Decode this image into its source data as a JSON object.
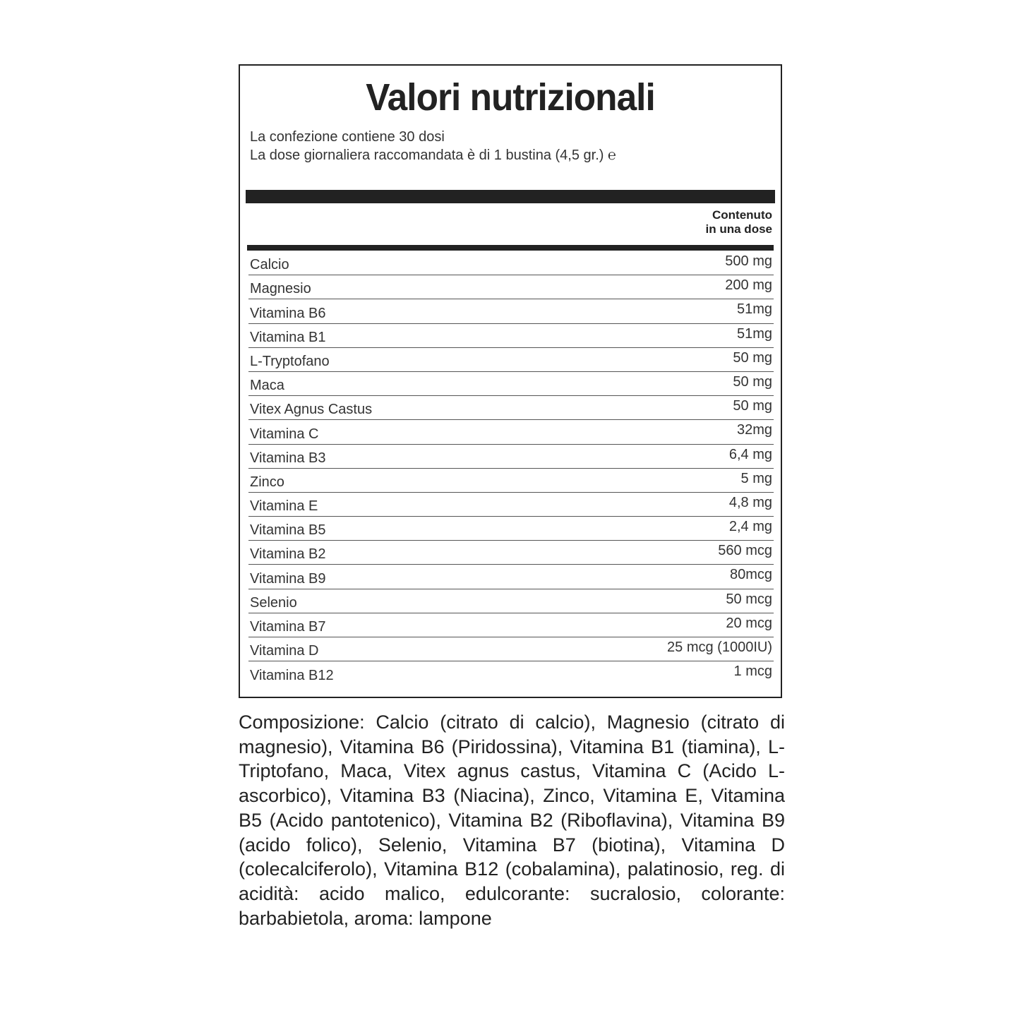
{
  "title": "Valori nutrizionali",
  "subtitle_lines": [
    "La confezione contiene 30 dosi",
    "La dose giornaliera raccomandata è di 1 bustina (4,5 gr.) ℮"
  ],
  "column_header": [
    "Contenuto",
    "in una dose"
  ],
  "rows": [
    {
      "name": "Calcio",
      "value": "500 mg"
    },
    {
      "name": "Magnesio",
      "value": "200 mg"
    },
    {
      "name": "Vitamina B6",
      "value": "51mg"
    },
    {
      "name": "Vitamina B1",
      "value": "51mg"
    },
    {
      "name": "L-Tryptofano",
      "value": "50 mg"
    },
    {
      "name": "Maca",
      "value": "50 mg"
    },
    {
      "name": "Vitex Agnus Castus",
      "value": "50 mg"
    },
    {
      "name": "Vitamina  C",
      "value": "32mg"
    },
    {
      "name": "Vitamina  B3",
      "value": "6,4 mg"
    },
    {
      "name": "Zinco",
      "value": "5 mg"
    },
    {
      "name": "Vitamina  E",
      "value": "4,8 mg"
    },
    {
      "name": "Vitamina B5",
      "value": "2,4 mg"
    },
    {
      "name": "Vitamina B2",
      "value": "560 mcg"
    },
    {
      "name": "Vitamina B9",
      "value": "80mcg"
    },
    {
      "name": "Selenio",
      "value": "50 mcg"
    },
    {
      "name": "Vitamina B7",
      "value": "20 mcg"
    },
    {
      "name": "Vitamina D",
      "value": "25 mcg (1000IU)"
    },
    {
      "name": "Vitamina B12",
      "value": "1 mcg"
    }
  ],
  "composition": "Composizione: Calcio (citrato di calcio), Magnesio (citrato di magnesio), Vitamina B6 (Piridossina), Vitamina B1 (tiamina), L-Triptofano, Maca, Vitex agnus castus, Vitamina C (Acido L-ascorbico), Vitamina B3 (Niacina), Zinco, Vitamina E, Vitamina B5 (Acido pantotenico), Vitamina B2 (Riboflavina), Vitamina B9 (acido folico), Selenio, Vitamina B7 (biotina), Vitamina D (colecalciferolo), Vitamina B12 (cobalamina), palatinosio, reg. di acidità: acido malico, edulcorante: sucralosio, colorante: barbabietola, aroma: lampone"
}
